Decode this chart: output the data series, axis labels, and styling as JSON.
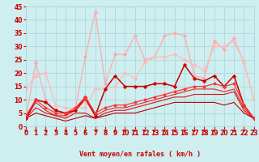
{
  "xlabel": "Vent moyen/en rafales ( km/h )",
  "xlim": [
    0,
    23
  ],
  "ylim": [
    0,
    45
  ],
  "yticks": [
    0,
    5,
    10,
    15,
    20,
    25,
    30,
    35,
    40,
    45
  ],
  "xticks": [
    0,
    1,
    2,
    3,
    4,
    5,
    6,
    7,
    8,
    9,
    10,
    11,
    12,
    13,
    14,
    15,
    16,
    17,
    18,
    19,
    20,
    21,
    22,
    23
  ],
  "bg_color": "#ceeef0",
  "grid_color": "#aad4d8",
  "lines": [
    {
      "x": [
        0,
        1,
        2,
        3,
        4,
        5,
        6,
        7,
        8,
        9,
        10,
        11,
        12,
        13,
        14,
        15,
        16,
        17,
        18,
        19,
        20,
        21,
        22,
        23
      ],
      "y": [
        3,
        24,
        10,
        5,
        4,
        7,
        26,
        43,
        16,
        27,
        27,
        34,
        25,
        26,
        34,
        35,
        34,
        19,
        18,
        32,
        29,
        33,
        24,
        10
      ],
      "color": "#ffaaaa",
      "lw": 0.9,
      "marker": "D",
      "ms": 1.8,
      "zorder": 2
    },
    {
      "x": [
        0,
        1,
        2,
        3,
        4,
        5,
        6,
        7,
        8,
        9,
        10,
        11,
        12,
        13,
        14,
        15,
        16,
        17,
        18,
        19,
        20,
        21,
        22,
        23
      ],
      "y": [
        14,
        19,
        20,
        8,
        7,
        7,
        7,
        14,
        14,
        15,
        20,
        18,
        24,
        26,
        26,
        27,
        25,
        23,
        21,
        30,
        30,
        32,
        24,
        10
      ],
      "color": "#ffbbbb",
      "lw": 0.9,
      "marker": "D",
      "ms": 1.8,
      "zorder": 2
    },
    {
      "x": [
        0,
        1,
        2,
        3,
        4,
        5,
        6,
        7,
        8,
        9,
        10,
        11,
        12,
        13,
        14,
        15,
        16,
        17,
        18,
        19,
        20,
        21,
        22,
        23
      ],
      "y": [
        3,
        10,
        9,
        6,
        5,
        6,
        11,
        4,
        14,
        19,
        15,
        15,
        15,
        16,
        16,
        15,
        23,
        18,
        17,
        19,
        15,
        19,
        8,
        3
      ],
      "color": "#cc0000",
      "lw": 1.1,
      "marker": "D",
      "ms": 1.8,
      "zorder": 3
    },
    {
      "x": [
        0,
        1,
        2,
        3,
        4,
        5,
        6,
        7,
        8,
        9,
        10,
        11,
        12,
        13,
        14,
        15,
        16,
        17,
        18,
        19,
        20,
        21,
        22,
        23
      ],
      "y": [
        4,
        10,
        7,
        5,
        5,
        7,
        11,
        5,
        7,
        8,
        8,
        9,
        10,
        11,
        12,
        13,
        14,
        15,
        15,
        16,
        15,
        16,
        8,
        3
      ],
      "color": "#ff3333",
      "lw": 0.9,
      "marker": "D",
      "ms": 1.5,
      "zorder": 3
    },
    {
      "x": [
        0,
        1,
        2,
        3,
        4,
        5,
        6,
        7,
        8,
        9,
        10,
        11,
        12,
        13,
        14,
        15,
        16,
        17,
        18,
        19,
        20,
        21,
        22,
        23
      ],
      "y": [
        3,
        9,
        6,
        4,
        4,
        6,
        10,
        4,
        6,
        7,
        7,
        8,
        9,
        10,
        11,
        12,
        13,
        14,
        14,
        14,
        13,
        14,
        7,
        3
      ],
      "color": "#ee2222",
      "lw": 0.8,
      "marker": null,
      "ms": 0,
      "zorder": 2
    },
    {
      "x": [
        0,
        1,
        2,
        3,
        4,
        5,
        6,
        7,
        8,
        9,
        10,
        11,
        12,
        13,
        14,
        15,
        16,
        17,
        18,
        19,
        20,
        21,
        22,
        23
      ],
      "y": [
        3,
        7,
        5,
        4,
        3,
        5,
        5,
        3,
        5,
        6,
        6,
        7,
        8,
        9,
        10,
        11,
        11,
        12,
        12,
        12,
        12,
        13,
        6,
        3
      ],
      "color": "#dd1111",
      "lw": 0.8,
      "marker": null,
      "ms": 0,
      "zorder": 2
    },
    {
      "x": [
        0,
        1,
        2,
        3,
        4,
        5,
        6,
        7,
        8,
        9,
        10,
        11,
        12,
        13,
        14,
        15,
        16,
        17,
        18,
        19,
        20,
        21,
        22,
        23
      ],
      "y": [
        3,
        5,
        4,
        3,
        2,
        3,
        4,
        3,
        4,
        5,
        5,
        5,
        6,
        7,
        8,
        9,
        9,
        9,
        9,
        9,
        8,
        9,
        5,
        3
      ],
      "color": "#bb0000",
      "lw": 0.8,
      "marker": null,
      "ms": 0,
      "zorder": 2
    }
  ],
  "label_color": "#cc0000",
  "tick_fontsize": 5.5,
  "xlabel_fontsize": 6.0
}
